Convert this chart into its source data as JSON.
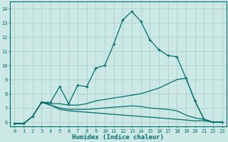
{
  "title": "",
  "xlabel": "Humidex (Indice chaleur)",
  "xlim_min": -0.5,
  "xlim_max": 23.5,
  "ylim_min": 5.7,
  "ylim_max": 14.5,
  "xticks": [
    0,
    1,
    2,
    3,
    4,
    5,
    6,
    7,
    8,
    9,
    10,
    11,
    12,
    13,
    14,
    15,
    16,
    17,
    18,
    19,
    20,
    21,
    22,
    23
  ],
  "yticks": [
    6,
    7,
    8,
    9,
    10,
    11,
    12,
    13,
    14
  ],
  "background_color": "#cce8e4",
  "line_color": "#006e6e",
  "grid_color": "#a8ccc8",
  "lines": [
    {
      "x": [
        0,
        1,
        2,
        3,
        4,
        5,
        6,
        7,
        8,
        9,
        10,
        11,
        12,
        13,
        14,
        15,
        16,
        17,
        18,
        19,
        20,
        21,
        22,
        23
      ],
      "y": [
        5.9,
        5.9,
        6.4,
        7.4,
        7.4,
        8.5,
        7.3,
        8.6,
        8.5,
        9.8,
        10.0,
        11.5,
        13.2,
        13.8,
        13.1,
        11.8,
        11.1,
        10.7,
        10.6,
        9.1,
        7.5,
        6.2,
        6.0,
        6.0
      ],
      "marker": "+"
    },
    {
      "x": [
        0,
        1,
        2,
        3,
        4,
        5,
        6,
        7,
        8,
        9,
        10,
        11,
        12,
        13,
        14,
        15,
        16,
        17,
        18,
        19,
        20,
        21,
        22,
        23
      ],
      "y": [
        5.9,
        5.9,
        6.4,
        7.4,
        7.3,
        7.3,
        7.2,
        7.2,
        7.3,
        7.5,
        7.6,
        7.7,
        7.8,
        7.9,
        8.0,
        8.2,
        8.4,
        8.7,
        9.0,
        9.1,
        7.5,
        6.2,
        6.0,
        6.0
      ],
      "marker": null
    },
    {
      "x": [
        0,
        1,
        2,
        3,
        4,
        5,
        6,
        7,
        8,
        9,
        10,
        11,
        12,
        13,
        14,
        15,
        16,
        17,
        18,
        19,
        20,
        21,
        22,
        23
      ],
      "y": [
        5.9,
        5.9,
        6.4,
        7.4,
        7.2,
        7.0,
        6.9,
        6.9,
        6.9,
        6.95,
        7.0,
        7.05,
        7.1,
        7.15,
        7.1,
        7.0,
        6.95,
        6.9,
        6.8,
        6.5,
        6.3,
        6.2,
        6.0,
        6.0
      ],
      "marker": null
    },
    {
      "x": [
        0,
        1,
        2,
        3,
        4,
        5,
        6,
        7,
        8,
        9,
        10,
        11,
        12,
        13,
        14,
        15,
        16,
        17,
        18,
        19,
        20,
        21,
        22,
        23
      ],
      "y": [
        5.9,
        5.9,
        6.4,
        7.4,
        7.2,
        6.9,
        6.8,
        6.75,
        6.7,
        6.65,
        6.6,
        6.55,
        6.5,
        6.45,
        6.4,
        6.35,
        6.3,
        6.25,
        6.2,
        6.15,
        6.1,
        6.1,
        6.0,
        6.0
      ],
      "marker": null
    }
  ],
  "tick_fontsize": 5.0,
  "xlabel_fontsize": 6.5,
  "linewidth": 0.9,
  "markersize": 3.5
}
